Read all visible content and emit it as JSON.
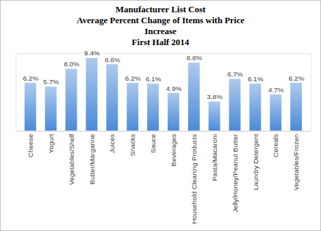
{
  "chart_data": {
    "type": "bar",
    "title": "Manufacturer List Cost\nAverage Percent Change of Items with Price\nIncrease\nFirst Half 2014",
    "categories": [
      "Cheese",
      "Yogurt",
      "Vegetables/Shelf",
      "Butter/Margarine",
      "Juices",
      "Snacks",
      "Sauce",
      "Beverages",
      "Household Cleaning Products",
      "Pasta/Macaroni",
      "Jelly/Honey/Peanut Butter",
      "Laundry Detergent",
      "Cereals",
      "Vegetables/Frozen"
    ],
    "values": [
      6.2,
      5.7,
      8.0,
      9.4,
      8.6,
      6.2,
      6.1,
      4.9,
      8.8,
      3.8,
      6.7,
      6.1,
      4.7,
      6.2
    ],
    "value_labels": [
      "6.2%",
      "5.7%",
      "8.0%",
      "9.4%",
      "8.6%",
      "6.2%",
      "6.1%",
      "4.9%",
      "8.8%",
      "3.8%",
      "6.7%",
      "6.1%",
      "4.7%",
      "6.2%"
    ],
    "color": "#4a8ad8",
    "ylim": [
      0,
      10
    ],
    "yticks": [],
    "grid": false,
    "data_labels": true,
    "tick_labels": "x"
  }
}
